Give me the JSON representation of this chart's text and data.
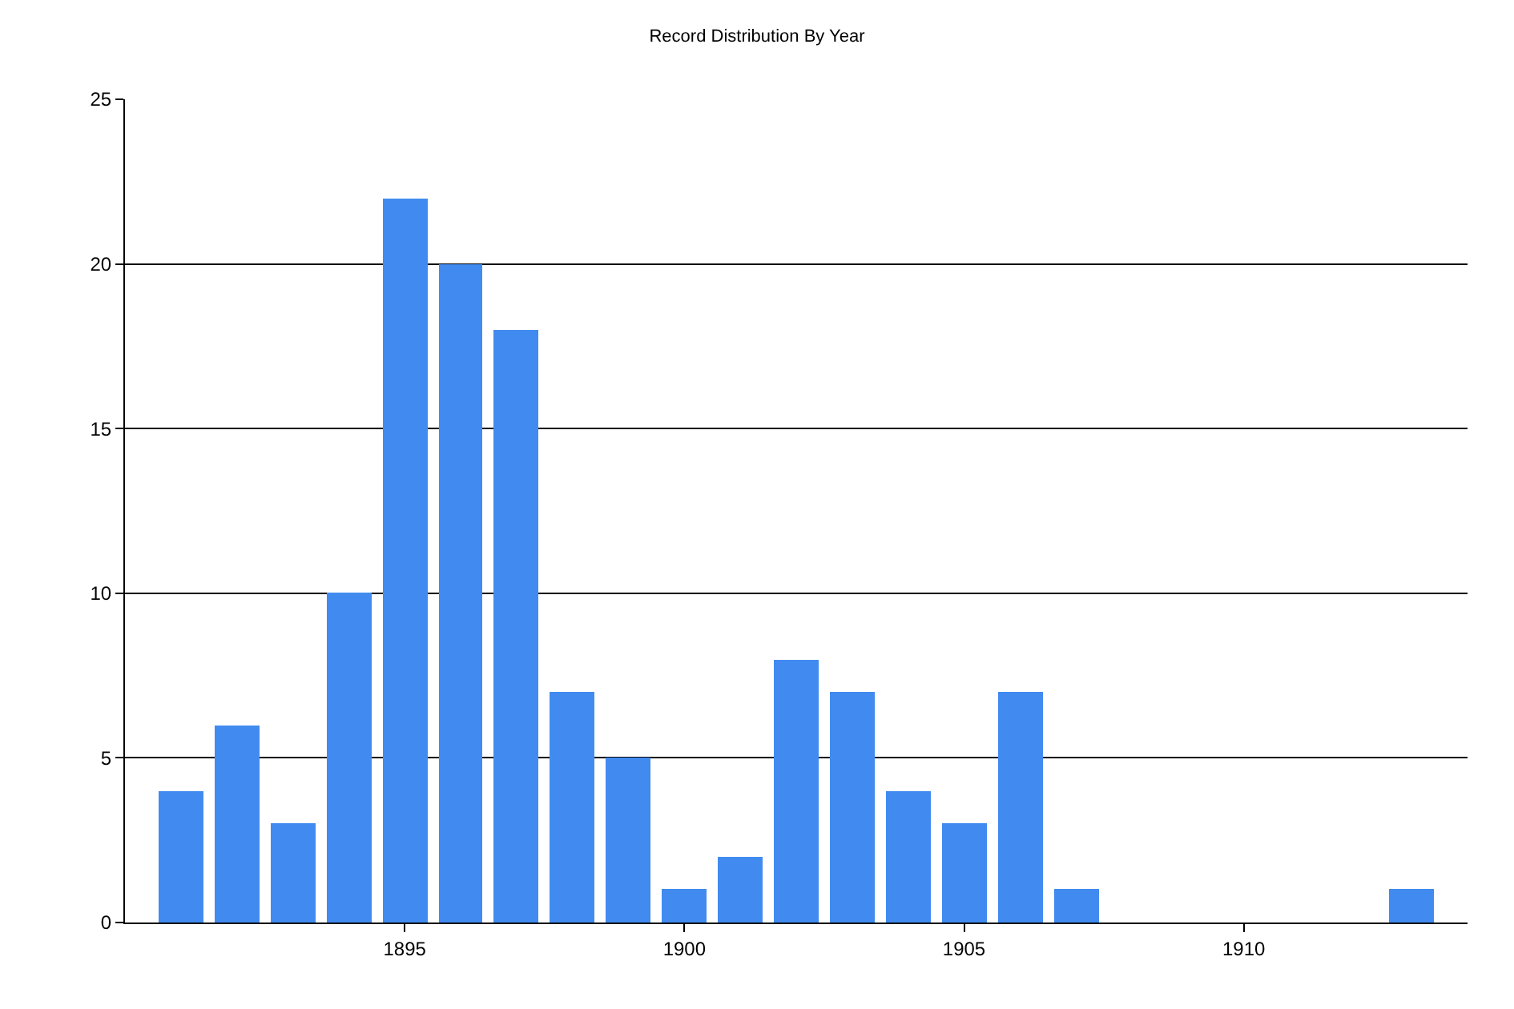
{
  "chart_data": {
    "type": "bar",
    "title": "Record Distribution By Year",
    "x": [
      1891,
      1892,
      1893,
      1894,
      1895,
      1896,
      1897,
      1898,
      1899,
      1900,
      1901,
      1902,
      1903,
      1904,
      1905,
      1906,
      1907,
      1913
    ],
    "values": [
      4,
      6,
      3,
      10,
      22,
      20,
      18,
      7,
      5,
      1,
      2,
      8,
      7,
      4,
      3,
      7,
      1,
      1
    ],
    "color": "#418bf0",
    "xlim": [
      1890,
      1914
    ],
    "xticks": [
      1895,
      1900,
      1905,
      1910
    ],
    "ylim": [
      0,
      25
    ],
    "yticks": [
      0,
      5,
      10,
      15,
      20,
      25
    ],
    "grid": "y"
  }
}
